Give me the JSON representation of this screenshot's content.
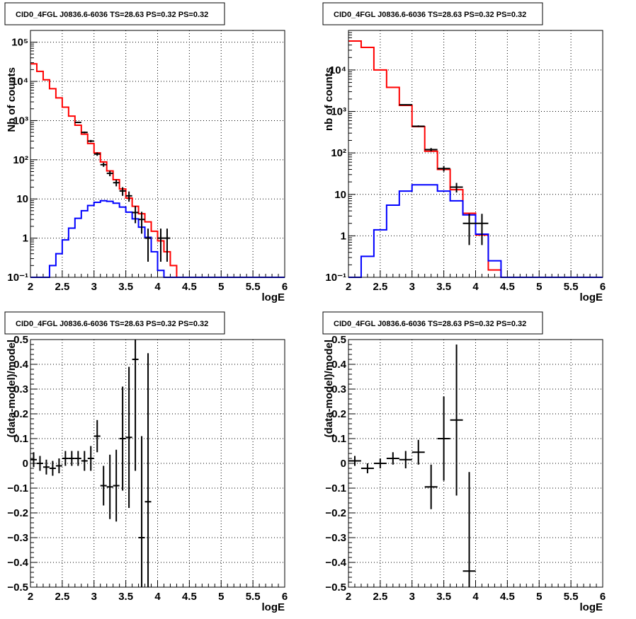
{
  "chart_data": [
    {
      "type": "histogram",
      "title": "CID0_4FGL J0836.6-6036 TS=28.63 PS=0.32 PS=0.32",
      "xlabel": "logE",
      "ylabel": "Nb of counts",
      "xlim": [
        2,
        6
      ],
      "ylim": [
        0.1,
        200000
      ],
      "yscale": "log",
      "grid": true,
      "xticks": [
        "2",
        "2.5",
        "3",
        "3.5",
        "4",
        "4.5",
        "5",
        "5.5",
        "6"
      ],
      "yticks": [
        {
          "v": 0.1,
          "label": "10⁻¹"
        },
        {
          "v": 1,
          "label": "1"
        },
        {
          "v": 10,
          "label": "10"
        },
        {
          "v": 100,
          "label": "10²"
        },
        {
          "v": 1000,
          "label": "10³"
        },
        {
          "v": 10000,
          "label": "10⁴"
        },
        {
          "v": 100000,
          "label": "10⁵"
        }
      ],
      "bin_edges": [
        2.0,
        2.1,
        2.2,
        2.3,
        2.4,
        2.5,
        2.6,
        2.7,
        2.8,
        2.9,
        3.0,
        3.1,
        3.2,
        3.3,
        3.4,
        3.5,
        3.6,
        3.7,
        3.8,
        3.9,
        4.0,
        4.1,
        4.2,
        4.3,
        4.4,
        4.5,
        4.6,
        4.7,
        4.8,
        4.9,
        5.0,
        5.1,
        5.2,
        5.3,
        5.4,
        5.5,
        5.6,
        5.7,
        5.8,
        5.9,
        6.0
      ],
      "series": [
        {
          "color": "#ff0000",
          "values": [
            28000,
            18000,
            11000,
            6500,
            3800,
            2200,
            1300,
            760,
            450,
            260,
            150,
            88,
            52,
            31,
            18,
            10.5,
            6.5,
            4.2,
            2.6,
            1.5,
            0.85,
            0.45,
            0.2,
            0.1,
            0.1,
            0.1,
            0.1,
            0.1,
            0.1,
            0.1,
            0.1,
            0.1,
            0.1,
            0.1,
            0.1,
            0.1,
            0.1,
            0.1,
            0.1,
            0.1
          ]
        },
        {
          "color": "#0000ff",
          "values": [
            0.1,
            0.1,
            0.1,
            0.2,
            0.4,
            0.9,
            1.8,
            3.2,
            5.0,
            6.8,
            8.2,
            9.0,
            8.7,
            7.8,
            6.2,
            4.6,
            3.1,
            1.9,
            1.05,
            0.45,
            0.15,
            0.1,
            0.1,
            0.1,
            0.1,
            0.1,
            0.1,
            0.1,
            0.1,
            0.1,
            0.1,
            0.1,
            0.1,
            0.1,
            0.1,
            0.1,
            0.1,
            0.1,
            0.1,
            0.1
          ]
        },
        {
          "color": "#000000",
          "points": [
            {
              "x": 2.75,
              "y": 900,
              "err": 35
            },
            {
              "x": 2.85,
              "y": 500,
              "err": 25
            },
            {
              "x": 2.95,
              "y": 300,
              "err": 20
            },
            {
              "x": 3.05,
              "y": 140,
              "err": 14
            },
            {
              "x": 3.15,
              "y": 75,
              "err": 9
            },
            {
              "x": 3.25,
              "y": 45,
              "err": 7
            },
            {
              "x": 3.35,
              "y": 26,
              "err": 5
            },
            {
              "x": 3.45,
              "y": 16,
              "err": 4
            },
            {
              "x": 3.55,
              "y": 12,
              "err": 3.5
            },
            {
              "x": 3.65,
              "y": 4.5,
              "err": 2.1
            },
            {
              "x": 3.75,
              "y": 3,
              "err": 1.7
            },
            {
              "x": 3.85,
              "y": 1,
              "err": 0.75
            },
            {
              "x": 4.05,
              "y": 1,
              "err": 0.75
            },
            {
              "x": 4.15,
              "y": 1,
              "err": 0.75
            }
          ]
        }
      ]
    },
    {
      "type": "histogram",
      "title": "CID0_4FGL J0836.6-6036 TS=28.63 PS=0.32 PS=0.32",
      "xlabel": "logE",
      "ylabel": "nb of counts",
      "xlim": [
        2,
        6
      ],
      "ylim": [
        0.1,
        90000
      ],
      "yscale": "log",
      "grid": true,
      "xticks": [
        "2",
        "2.5",
        "3",
        "3.5",
        "4",
        "4.5",
        "5",
        "5.5",
        "6"
      ],
      "yticks": [
        {
          "v": 0.1,
          "label": "10⁻¹"
        },
        {
          "v": 1,
          "label": "1"
        },
        {
          "v": 10,
          "label": "10"
        },
        {
          "v": 100,
          "label": "10²"
        },
        {
          "v": 1000,
          "label": "10³"
        },
        {
          "v": 10000,
          "label": "10⁴"
        }
      ],
      "bin_edges": [
        2.0,
        2.2,
        2.4,
        2.6,
        2.8,
        3.0,
        3.2,
        3.4,
        3.6,
        3.8,
        4.0,
        4.2,
        4.4,
        4.6,
        4.8,
        5.0,
        5.2,
        5.4,
        5.6,
        5.8,
        6.0
      ],
      "series": [
        {
          "color": "#ff0000",
          "values": [
            50000,
            35000,
            10000,
            3800,
            1400,
            430,
            110,
            40,
            13,
            3.5,
            1.05,
            0.15,
            0.1,
            0.1,
            0.1,
            0.1,
            0.1,
            0.1,
            0.1,
            0.1
          ]
        },
        {
          "color": "#0000ff",
          "values": [
            0.1,
            0.32,
            1.4,
            5.5,
            12,
            17,
            17,
            12,
            7,
            3.2,
            1.1,
            0.25,
            0.1,
            0.1,
            0.1,
            0.1,
            0.1,
            0.1,
            0.1,
            0.1
          ]
        },
        {
          "color": "#000000",
          "points": [
            {
              "x": 2.9,
              "y": 1450,
              "err": 38
            },
            {
              "x": 3.1,
              "y": 440,
              "err": 21
            },
            {
              "x": 3.3,
              "y": 120,
              "err": 11
            },
            {
              "x": 3.5,
              "y": 42,
              "err": 6.5
            },
            {
              "x": 3.7,
              "y": 15,
              "err": 3.9
            },
            {
              "x": 3.9,
              "y": 2,
              "err": 1.4
            },
            {
              "x": 4.1,
              "y": 2,
              "err": 1.4
            }
          ]
        }
      ]
    },
    {
      "type": "scatter",
      "title": "CID0_4FGL J0836.6-6036 TS=28.63 PS=0.32 PS=0.32",
      "xlabel": "logE",
      "ylabel": "(data-model)/model",
      "xlim": [
        2,
        6
      ],
      "ylim": [
        -0.5,
        0.5
      ],
      "grid": true,
      "xticks": [
        "2",
        "2.5",
        "3",
        "3.5",
        "4",
        "4.5",
        "5",
        "5.5",
        "6"
      ],
      "yticks": [
        {
          "v": -0.5,
          "label": "−0.5"
        },
        {
          "v": -0.4,
          "label": "−0.4"
        },
        {
          "v": -0.3,
          "label": "−0.3"
        },
        {
          "v": -0.2,
          "label": "−0.2"
        },
        {
          "v": -0.1,
          "label": "−0.1"
        },
        {
          "v": 0,
          "label": "0"
        },
        {
          "v": 0.1,
          "label": "0.1"
        },
        {
          "v": 0.2,
          "label": "0.2"
        },
        {
          "v": 0.3,
          "label": "0.3"
        },
        {
          "v": 0.4,
          "label": "0.4"
        },
        {
          "v": 0.5,
          "label": "0.5"
        }
      ],
      "binwidth": 0.1,
      "points": [
        {
          "x": 2.05,
          "y": 0.015,
          "err": 0.03
        },
        {
          "x": 2.15,
          "y": 0.0,
          "err": 0.03
        },
        {
          "x": 2.25,
          "y": -0.015,
          "err": 0.03
        },
        {
          "x": 2.35,
          "y": -0.02,
          "err": 0.03
        },
        {
          "x": 2.45,
          "y": -0.01,
          "err": 0.03
        },
        {
          "x": 2.55,
          "y": 0.02,
          "err": 0.03
        },
        {
          "x": 2.65,
          "y": 0.02,
          "err": 0.03
        },
        {
          "x": 2.75,
          "y": 0.02,
          "err": 0.03
        },
        {
          "x": 2.85,
          "y": 0.01,
          "err": 0.04
        },
        {
          "x": 2.95,
          "y": 0.02,
          "err": 0.05
        },
        {
          "x": 3.05,
          "y": 0.11,
          "err": 0.065
        },
        {
          "x": 3.15,
          "y": -0.09,
          "err": 0.08
        },
        {
          "x": 3.25,
          "y": -0.095,
          "err": 0.13
        },
        {
          "x": 3.35,
          "y": -0.09,
          "err": 0.145
        },
        {
          "x": 3.45,
          "y": 0.1,
          "err": 0.21
        },
        {
          "x": 3.55,
          "y": 0.105,
          "err": 0.285
        },
        {
          "x": 3.65,
          "y": 0.42,
          "err": 0.45
        },
        {
          "x": 3.75,
          "y": -0.3,
          "err": 0.41
        },
        {
          "x": 3.85,
          "y": -0.155,
          "err": 0.6
        }
      ]
    },
    {
      "type": "scatter",
      "title": "CID0_4FGL J0836.6-6036 TS=28.63 PS=0.32 PS=0.32",
      "xlabel": "logE",
      "ylabel": "(data-model)/model",
      "xlim": [
        2,
        6
      ],
      "ylim": [
        -0.5,
        0.5
      ],
      "grid": true,
      "xticks": [
        "2",
        "2.5",
        "3",
        "3.5",
        "4",
        "4.5",
        "5",
        "5.5",
        "6"
      ],
      "yticks": [
        {
          "v": -0.5,
          "label": "−0.5"
        },
        {
          "v": -0.4,
          "label": "−0.4"
        },
        {
          "v": -0.3,
          "label": "−0.3"
        },
        {
          "v": -0.2,
          "label": "−0.2"
        },
        {
          "v": -0.1,
          "label": "−0.1"
        },
        {
          "v": 0,
          "label": "0"
        },
        {
          "v": 0.1,
          "label": "0.1"
        },
        {
          "v": 0.2,
          "label": "0.2"
        },
        {
          "v": 0.3,
          "label": "0.3"
        },
        {
          "v": 0.4,
          "label": "0.4"
        },
        {
          "v": 0.5,
          "label": "0.5"
        }
      ],
      "binwidth": 0.2,
      "points": [
        {
          "x": 2.1,
          "y": 0.01,
          "err": 0.02
        },
        {
          "x": 2.3,
          "y": -0.02,
          "err": 0.02
        },
        {
          "x": 2.5,
          "y": 0.0,
          "err": 0.02
        },
        {
          "x": 2.7,
          "y": 0.02,
          "err": 0.025
        },
        {
          "x": 2.9,
          "y": 0.015,
          "err": 0.035
        },
        {
          "x": 3.1,
          "y": 0.045,
          "err": 0.05
        },
        {
          "x": 3.3,
          "y": -0.095,
          "err": 0.09
        },
        {
          "x": 3.5,
          "y": 0.1,
          "err": 0.17
        },
        {
          "x": 3.7,
          "y": 0.175,
          "err": 0.305
        },
        {
          "x": 3.9,
          "y": -0.435,
          "err": 0.4
        }
      ]
    }
  ]
}
